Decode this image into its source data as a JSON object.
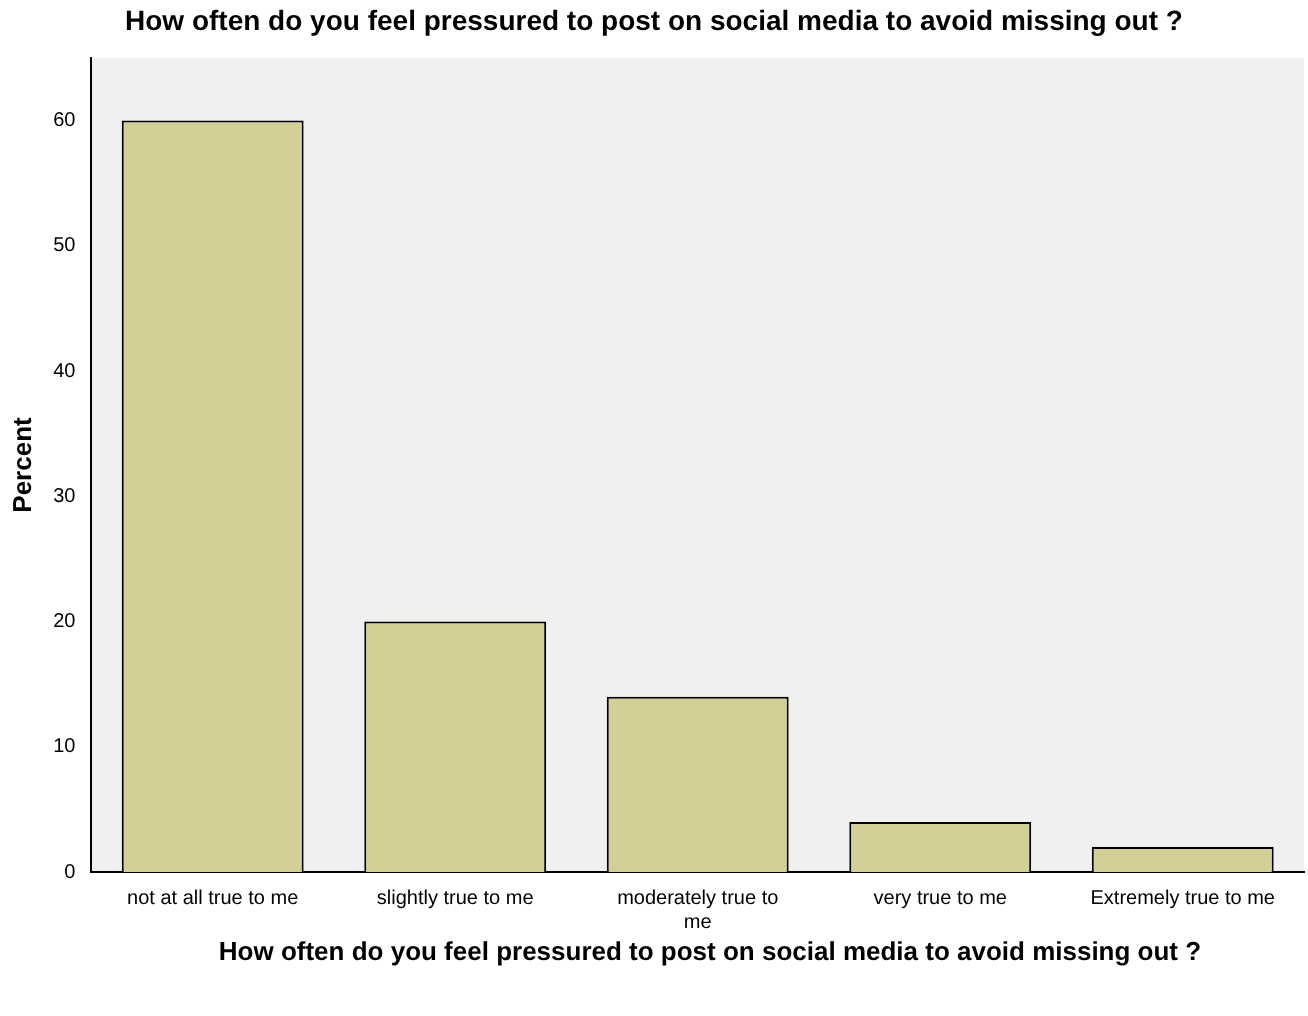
{
  "chart_data": {
    "type": "bar",
    "title": "How often do you feel pressured to post on social media to avoid missing out ?",
    "xlabel": "How often do you feel pressured to post on social media to avoid missing out ?",
    "ylabel": "Percent",
    "categories": [
      "not at all true to me",
      "slightly true to me",
      "moderately true to me",
      "very true to me",
      "Extremely true to me"
    ],
    "values": [
      60,
      20,
      14,
      4,
      2
    ],
    "color": "#d4cf96",
    "ylim": [
      0,
      65
    ],
    "yticks": [
      0,
      10,
      20,
      30,
      40,
      50,
      60
    ],
    "grid": false,
    "legend": false
  }
}
